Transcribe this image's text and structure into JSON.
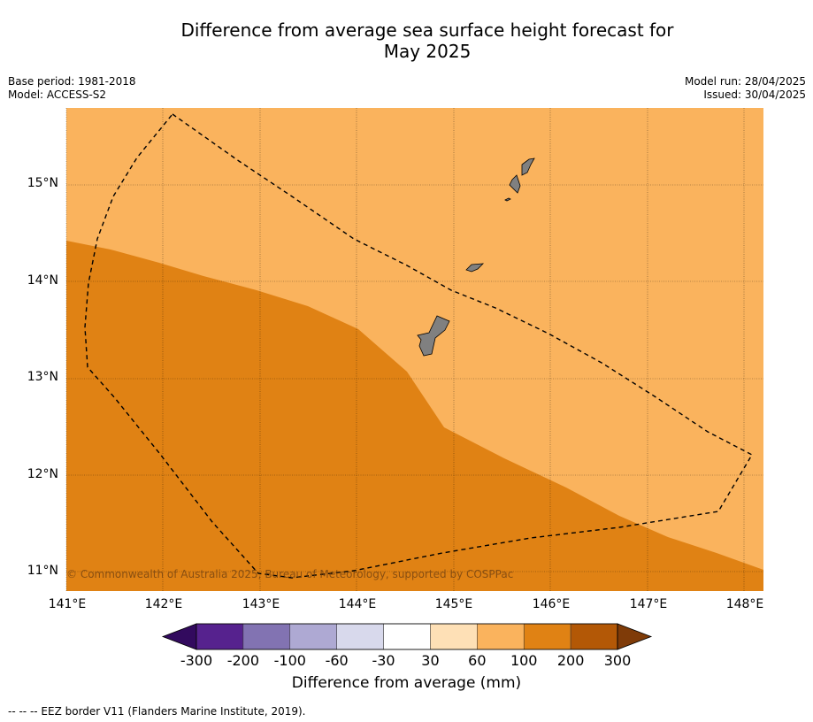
{
  "title_line1": "Difference from average sea surface height forecast for",
  "title_line2": "May 2025",
  "meta_left": [
    "Base period: 1981-2018",
    "Model: ACCESS-S2"
  ],
  "meta_right": [
    "Model run: 28/04/2025",
    "Issued: 30/04/2025"
  ],
  "copyright": "© Commonwealth of Australia 2025, Bureau of Meteorology, supported by COSPPac",
  "lat_ticks": [
    "15°N",
    "14°N",
    "13°N",
    "12°N",
    "11°N"
  ],
  "lon_ticks": [
    "141°E",
    "142°E",
    "143°E",
    "144°E",
    "145°E",
    "146°E",
    "147°E",
    "148°E"
  ],
  "colorbar": {
    "title": "Difference from average (mm)",
    "labels": [
      "-300",
      "-200",
      "-100",
      "-60",
      "-30",
      "30",
      "60",
      "100",
      "200",
      "300"
    ],
    "colors": [
      "#320a5e",
      "#56228e",
      "#8273b2",
      "#aea9d3",
      "#d8d9ec",
      "#ffffff",
      "#fee0b6",
      "#fab35d",
      "#e08214",
      "#b35806",
      "#7f3b08"
    ]
  },
  "region_colors": {
    "north": "#fab35d",
    "south": "#e08214",
    "land": "#808080"
  },
  "legend_footer": "-- -- -- EEZ border V11 (Flanders Marine Institute, 2019)."
}
